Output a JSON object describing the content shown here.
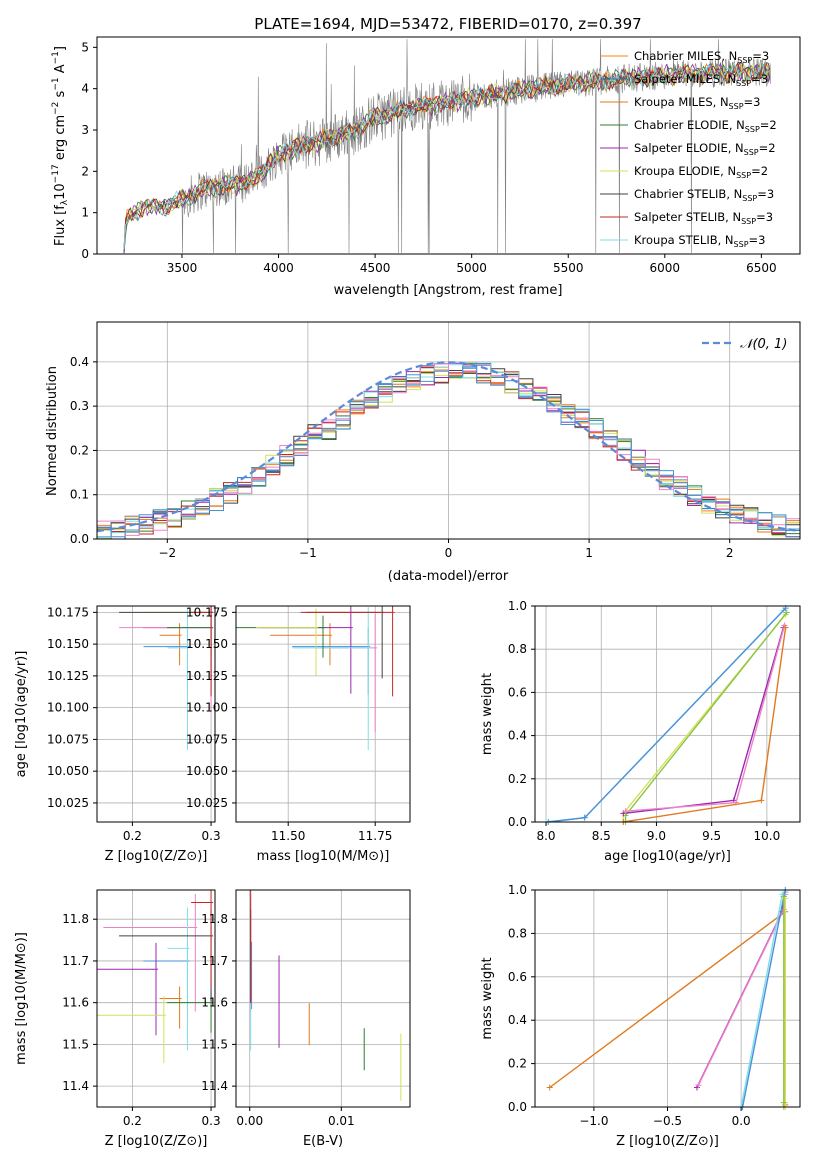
{
  "figure_title": "PLATE=1694, MJD=53472, FIBERID=0170, z=0.397",
  "colors": {
    "Chabrier MILES": "#ff7f0e",
    "Salpeter MILES": "#1f77b4",
    "Kroupa MILES": "#e07a1f",
    "Chabrier ELODIE": "#2e7d32",
    "Salpeter ELODIE": "#9c27b0",
    "Kroupa ELODIE": "#d4e157",
    "Chabrier STELIB": "#424242",
    "Salpeter STELIB": "#c62828",
    "Kroupa STELIB": "#80deea",
    "data": "#808080",
    "gaussian": "#5b8ad8"
  },
  "chart_data": [
    {
      "id": "spectrum",
      "type": "line",
      "title": "PLATE=1694, MJD=53472, FIBERID=0170, z=0.397",
      "xlabel": "wavelength [Angstrom, rest frame]",
      "ylabel": "Flux [f_λ 10^-17 erg cm^-2 s^-1 A^-1]",
      "xlim": [
        3060,
        6700
      ],
      "ylim": [
        0,
        5.25
      ],
      "xticks": [
        3500,
        4000,
        4500,
        5000,
        5500,
        6000,
        6500
      ],
      "yticks": [
        0,
        1,
        2,
        3,
        4,
        5
      ],
      "legend_position": "top-right",
      "legend": [
        "Chabrier MILES, N_SSP=3",
        "Salpeter MILES, N_SSP=3",
        "Kroupa MILES, N_SSP=3",
        "Chabrier ELODIE, N_SSP=2",
        "Salpeter ELODIE, N_SSP=2",
        "Kroupa ELODIE, N_SSP=2",
        "Chabrier STELIB, N_SSP=3",
        "Salpeter STELIB, N_SSP=3",
        "Kroupa STELIB, N_SSP=3"
      ],
      "continuum": [
        [
          3200,
          0.0
        ],
        [
          3210,
          0.85
        ],
        [
          3300,
          1.15
        ],
        [
          3400,
          1.15
        ],
        [
          3500,
          1.3
        ],
        [
          3600,
          1.55
        ],
        [
          3700,
          1.65
        ],
        [
          3800,
          1.7
        ],
        [
          3900,
          1.9
        ],
        [
          4000,
          2.4
        ],
        [
          4100,
          2.6
        ],
        [
          4200,
          2.7
        ],
        [
          4300,
          2.85
        ],
        [
          4400,
          3.0
        ],
        [
          4500,
          3.3
        ],
        [
          4700,
          3.55
        ],
        [
          4900,
          3.7
        ],
        [
          5100,
          3.85
        ],
        [
          5300,
          4.0
        ],
        [
          5500,
          4.1
        ],
        [
          5800,
          4.25
        ],
        [
          6100,
          4.35
        ],
        [
          6400,
          4.4
        ],
        [
          6550,
          4.4
        ]
      ],
      "grid": false
    },
    {
      "id": "residuals",
      "type": "line",
      "xlabel": "(data-model)/error",
      "ylabel": "Normed distribution",
      "xlim": [
        -2.5,
        2.5
      ],
      "ylim": [
        0,
        0.49
      ],
      "xticks": [
        -2,
        -1,
        0,
        1,
        2
      ],
      "yticks": [
        0.0,
        0.1,
        0.2,
        0.3,
        0.4
      ],
      "legend": [
        "N(0,1)"
      ],
      "legend_position": "top-right",
      "grid": true
    },
    {
      "id": "age_vs_Z",
      "type": "scatter",
      "xlabel": "Z [log10(Z/Z⊙)]",
      "ylabel": "age [log10(age/yr)]",
      "xlim": [
        0.155,
        0.305
      ],
      "ylim": [
        10.01,
        10.18
      ],
      "xticks": [
        0.2,
        0.3
      ],
      "yticks": [
        10.025,
        10.05,
        10.075,
        10.1,
        10.125,
        10.15,
        10.175
      ],
      "grid": true
    },
    {
      "id": "age_vs_mass",
      "type": "scatter",
      "xlabel": "mass [log10(M/M⊙)]",
      "xlim": [
        11.35,
        11.85
      ],
      "ylim": [
        10.01,
        10.18
      ],
      "xticks": [
        11.5,
        11.75
      ],
      "yticks": [
        10.025,
        10.05,
        10.075,
        10.1,
        10.125,
        10.15,
        10.175
      ],
      "grid": true
    },
    {
      "id": "weight_vs_age",
      "type": "line",
      "xlabel": "age [log10(age/yr)]",
      "ylabel": "mass weight",
      "xlim": [
        7.9,
        10.3
      ],
      "ylim": [
        0,
        1.0
      ],
      "xticks": [
        8.0,
        8.5,
        9.0,
        9.5,
        10.0
      ],
      "yticks": [
        0.0,
        0.2,
        0.4,
        0.6,
        0.8,
        1.0
      ],
      "series": [
        {
          "color": "#80deea",
          "x": [
            8.0,
            8.35,
            10.15
          ],
          "y": [
            0.0,
            0.02,
            0.98
          ]
        },
        {
          "color": "#4a90d9",
          "x": [
            8.02,
            8.35,
            10.17
          ],
          "y": [
            0.0,
            0.02,
            0.99
          ]
        },
        {
          "color": "#d4e157",
          "x": [
            8.7,
            8.7,
            10.17
          ],
          "y": [
            0.0,
            0.04,
            0.96
          ]
        },
        {
          "color": "#8bc34a",
          "x": [
            8.72,
            8.72,
            10.18
          ],
          "y": [
            0.0,
            0.03,
            0.97
          ]
        },
        {
          "color": "#9c27b0",
          "x": [
            8.7,
            9.7,
            10.15
          ],
          "y": [
            0.04,
            0.1,
            0.9
          ]
        },
        {
          "color": "#ee82c8",
          "x": [
            8.72,
            9.72,
            10.16
          ],
          "y": [
            0.05,
            0.09,
            0.91
          ]
        },
        {
          "color": "#e07a1f",
          "x": [
            8.7,
            9.95,
            10.17
          ],
          "y": [
            0.0,
            0.1,
            0.9
          ]
        }
      ],
      "grid": true
    },
    {
      "id": "mass_vs_Z",
      "type": "scatter",
      "xlabel": "Z [log10(Z/Z⊙)]",
      "ylabel": "mass [log10(M/M⊙)]",
      "xlim": [
        0.155,
        0.305
      ],
      "ylim": [
        11.35,
        11.87
      ],
      "xticks": [
        0.2,
        0.3
      ],
      "yticks": [
        11.4,
        11.5,
        11.6,
        11.7,
        11.8
      ],
      "grid": true
    },
    {
      "id": "mass_vs_ebv",
      "type": "scatter",
      "xlabel": "E(B-V)",
      "xlim": [
        -0.0015,
        0.0175
      ],
      "ylim": [
        11.35,
        11.87
      ],
      "xticks": [
        0.0,
        0.01
      ],
      "yticks": [
        11.4,
        11.5,
        11.6,
        11.7,
        11.8
      ],
      "grid": true
    },
    {
      "id": "weight_vs_Z",
      "type": "line",
      "xlabel": "Z [log10(Z/Z⊙)]",
      "ylabel": "mass weight",
      "xlim": [
        -1.4,
        0.4
      ],
      "ylim": [
        0,
        1.0
      ],
      "xticks": [
        -1.0,
        -0.5,
        0.0
      ],
      "yticks": [
        0.0,
        0.2,
        0.4,
        0.6,
        0.8,
        1.0
      ],
      "series": [
        {
          "color": "#e07a1f",
          "x": [
            -1.3,
            0.3,
            0.3
          ],
          "y": [
            0.09,
            0.9,
            0.01
          ]
        },
        {
          "color": "#9c27b0",
          "x": [
            -0.3,
            0.28,
            0.3
          ],
          "y": [
            0.09,
            0.9,
            0.99
          ]
        },
        {
          "color": "#ee82c8",
          "x": [
            -0.29,
            0.29,
            0.3
          ],
          "y": [
            0.1,
            0.91,
            0.98
          ]
        },
        {
          "color": "#80deea",
          "x": [
            0.0,
            0.28,
            0.3
          ],
          "y": [
            0.0,
            0.98,
            0.99
          ]
        },
        {
          "color": "#4a90d9",
          "x": [
            0.01,
            0.29,
            0.3
          ],
          "y": [
            0.0,
            0.97,
            1.0
          ]
        },
        {
          "color": "#d4e157",
          "x": [
            0.3,
            0.3,
            0.3
          ],
          "y": [
            0.0,
            0.02,
            0.96
          ]
        },
        {
          "color": "#8bc34a",
          "x": [
            0.29,
            0.29,
            0.29
          ],
          "y": [
            0.0,
            0.02,
            0.97
          ]
        }
      ],
      "grid": true
    }
  ]
}
